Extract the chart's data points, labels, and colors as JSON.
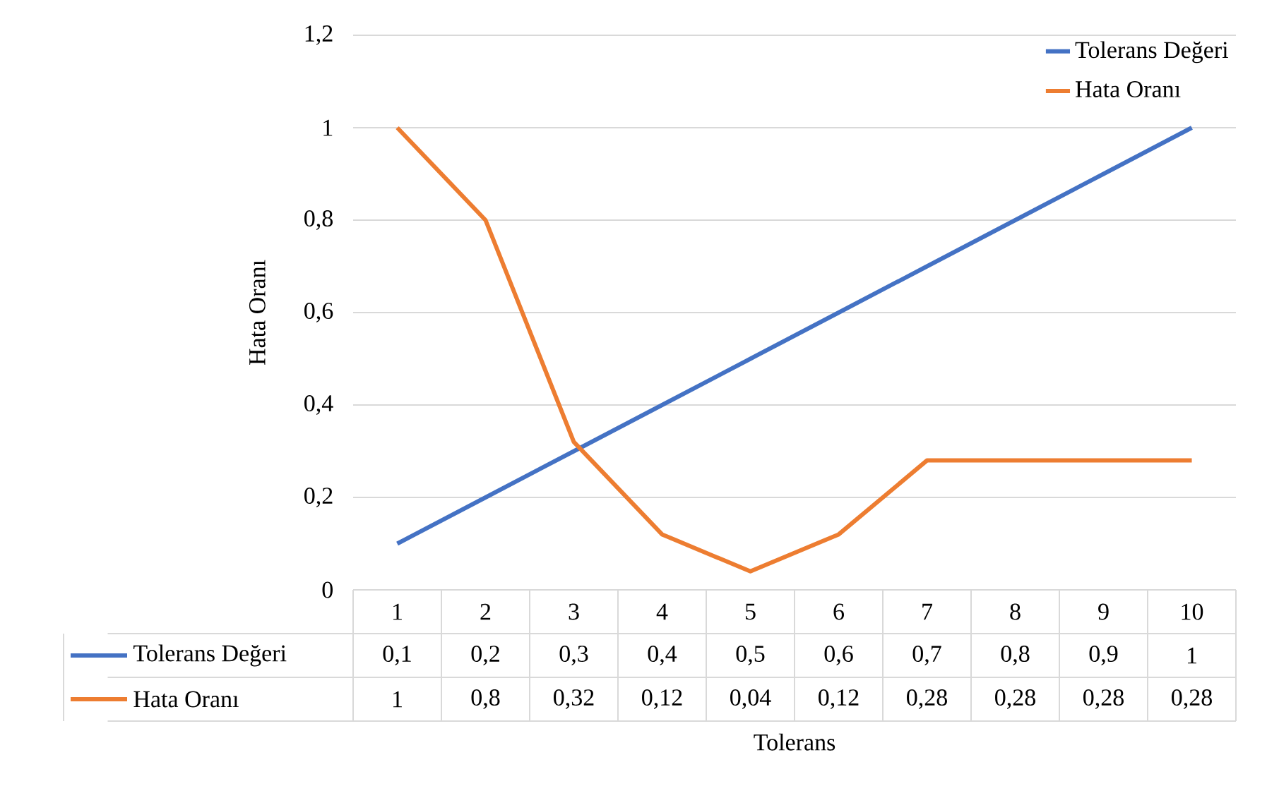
{
  "chart_data": {
    "type": "line",
    "xlabel": "Tolerans",
    "ylabel": "Hata Oranı",
    "categories": [
      "1",
      "2",
      "3",
      "4",
      "5",
      "6",
      "7",
      "8",
      "9",
      "10"
    ],
    "series": [
      {
        "name": "Tolerans Değeri",
        "color": "#4472c4",
        "values": [
          0.1,
          0.2,
          0.3,
          0.4,
          0.5,
          0.6,
          0.7,
          0.8,
          0.9,
          1
        ],
        "value_labels": [
          "0,1",
          "0,2",
          "0,3",
          "0,4",
          "0,5",
          "0,6",
          "0,7",
          "0,8",
          "0,9",
          "1"
        ]
      },
      {
        "name": "Hata Oranı",
        "color": "#ed7d31",
        "values": [
          1,
          0.8,
          0.32,
          0.12,
          0.04,
          0.12,
          0.28,
          0.28,
          0.28,
          0.28
        ],
        "value_labels": [
          "1",
          "0,8",
          "0,32",
          "0,12",
          "0,04",
          "0,12",
          "0,28",
          "0,28",
          "0,28",
          "0,28"
        ]
      }
    ],
    "ylim": [
      0,
      1.2
    ],
    "yticks": [
      0,
      {
        "value": 0.2,
        "label": "0,2"
      },
      {
        "value": 0.4,
        "label": "0,4"
      },
      {
        "value": 0.6,
        "label": "0,6"
      },
      {
        "value": 0.8,
        "label": "0,8"
      },
      1,
      {
        "value": 1.2,
        "label": "1,2"
      }
    ],
    "grid": "y",
    "legend": "top right",
    "marker": "none",
    "line_style": "solid"
  }
}
